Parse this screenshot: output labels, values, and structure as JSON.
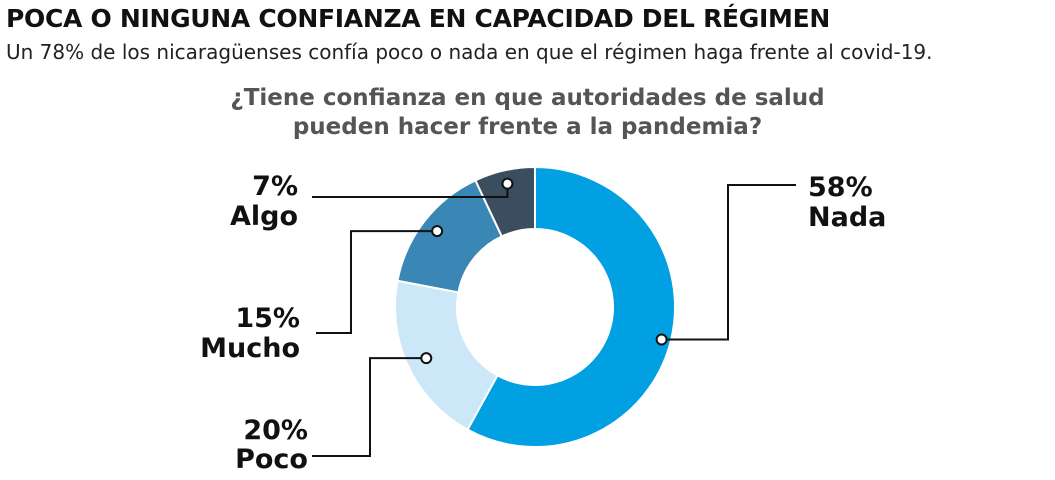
{
  "header": {
    "title": "POCA O NINGUNA CONFIANZA EN CAPACIDAD DEL RÉGIMEN",
    "subtitle": "Un 78% de los nicaragüenses confía poco o nada en que el régimen haga frente al covid-19."
  },
  "chart_data": {
    "type": "pie",
    "variant": "donut",
    "title_lines": [
      "¿Tiene confianza en que autoridades de salud",
      "pueden hacer frente a la pandemia?"
    ],
    "slices": [
      {
        "label": "Nada",
        "value": 58,
        "value_label": "58%",
        "color": "#00a0e3"
      },
      {
        "label": "Poco",
        "value": 20,
        "value_label": "20%",
        "color": "#cce8f8"
      },
      {
        "label": "Mucho",
        "value": 15,
        "value_label": "15%",
        "color": "#3a86b4"
      },
      {
        "label": "Algo",
        "value": 7,
        "value_label": "7%",
        "color": "#3a4e60"
      }
    ],
    "legend": "none",
    "unit": "%"
  }
}
